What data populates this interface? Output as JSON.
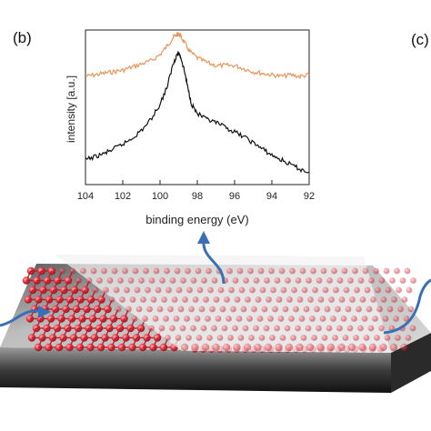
{
  "figure": {
    "panel_b_label": "(b)",
    "panel_c_label": "(c)"
  },
  "chart_data": {
    "type": "line",
    "xlabel": "binding energy (eV)",
    "ylabel": "intensity [a.u.]",
    "xlim": [
      104,
      92
    ],
    "x_reversed": true,
    "xticks": [
      "104",
      "102",
      "100",
      "98",
      "96",
      "94",
      "92"
    ],
    "ylim": [
      0,
      1
    ],
    "y_ticks_shown": false,
    "grid": false,
    "legend": "none",
    "series": [
      {
        "color": "#e8955a",
        "x": [
          104,
          103.5,
          103,
          102.5,
          102,
          101.5,
          101,
          100.5,
          100,
          99.6,
          99.3,
          99.1,
          99.0,
          98.9,
          98.7,
          98.4,
          98.0,
          97.5,
          97,
          96.5,
          96,
          95.5,
          95,
          94.5,
          94,
          93.5,
          93,
          92.5,
          92
        ],
        "y": [
          0.7,
          0.71,
          0.72,
          0.73,
          0.74,
          0.76,
          0.78,
          0.8,
          0.84,
          0.9,
          0.95,
          0.97,
          0.975,
          0.96,
          0.92,
          0.86,
          0.82,
          0.79,
          0.77,
          0.77,
          0.77,
          0.75,
          0.73,
          0.72,
          0.71,
          0.7,
          0.71,
          0.7,
          0.71
        ]
      },
      {
        "color": "#111111",
        "x": [
          104,
          103.5,
          103,
          102.5,
          102,
          101.5,
          101,
          100.5,
          100,
          99.6,
          99.3,
          99.1,
          99.0,
          98.9,
          98.7,
          98.5,
          98.3,
          98.0,
          97.5,
          97,
          96.5,
          96,
          95.5,
          95,
          94.5,
          94,
          93.5,
          93,
          92.5,
          92
        ],
        "y": [
          0.16,
          0.18,
          0.2,
          0.23,
          0.26,
          0.3,
          0.35,
          0.42,
          0.52,
          0.64,
          0.78,
          0.84,
          0.85,
          0.83,
          0.74,
          0.62,
          0.52,
          0.46,
          0.42,
          0.4,
          0.37,
          0.34,
          0.31,
          0.27,
          0.23,
          0.19,
          0.16,
          0.13,
          0.1,
          0.08
        ]
      }
    ]
  }
}
